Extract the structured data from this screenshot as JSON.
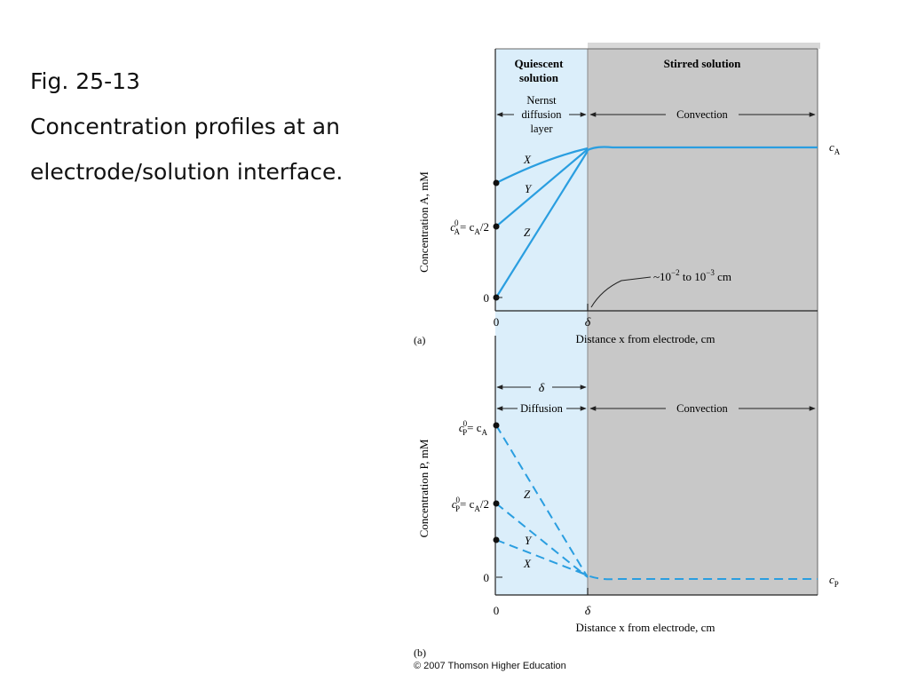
{
  "caption": {
    "fig_label": "Fig. 25-13",
    "line1": "Concentration profiles at an",
    "line2": "electrode/solution interface."
  },
  "colors": {
    "quiescent_bg": "#dbeefa",
    "stirred_bg": "#c8c8c8",
    "curve": "#2a9ee0",
    "axis": "#222222"
  },
  "panel_a": {
    "label": "(a)",
    "region_quiescent": [
      "Quiescent",
      "solution"
    ],
    "region_stirred": "Stirred solution",
    "nernst_label": [
      "Nernst",
      "diffusion",
      "layer"
    ],
    "convection": "Convection",
    "ylabel": "Concentration A, mM",
    "xlabel": "Distance x from electrode, cm",
    "tick_zero_x": "0",
    "tick_delta": "δ",
    "tick_zero_y": "0",
    "y_half_label": "c",
    "y_half_sub": "A",
    "y_half_sup": "0",
    "y_half_rest": "= c",
    "y_half_rest_sub": "A",
    "y_half_tail": "/2",
    "bulk_label": "c",
    "bulk_sub": "A",
    "curve_x": "X",
    "curve_y": "Y",
    "curve_z": "Z",
    "annotation": "~10",
    "annotation_sup1": "−2",
    "annotation_mid": " to 10",
    "annotation_sup2": "−3",
    "annotation_tail": " cm"
  },
  "panel_b": {
    "label": "(b)",
    "delta_span": "δ",
    "diffusion": "Diffusion",
    "convection": "Convection",
    "ylabel": "Concentration P, mM",
    "xlabel": "Distance x from electrode, cm",
    "tick_zero_x": "0",
    "tick_delta": "δ",
    "tick_zero_y": "0",
    "y_top_label": "c",
    "y_top_sub": "P",
    "y_top_sup": "0",
    "y_top_rest": "= c",
    "y_top_rest_sub": "A",
    "y_half_label": "c",
    "y_half_sub": "P",
    "y_half_sup": "0",
    "y_half_rest": "= c",
    "y_half_rest_sub": "A",
    "y_half_tail": "/2",
    "bulk_label": "c",
    "bulk_sub": "P",
    "curve_x": "X",
    "curve_y": "Y",
    "curve_z": "Z"
  },
  "copyright": "© 2007 Thomson Higher Education"
}
